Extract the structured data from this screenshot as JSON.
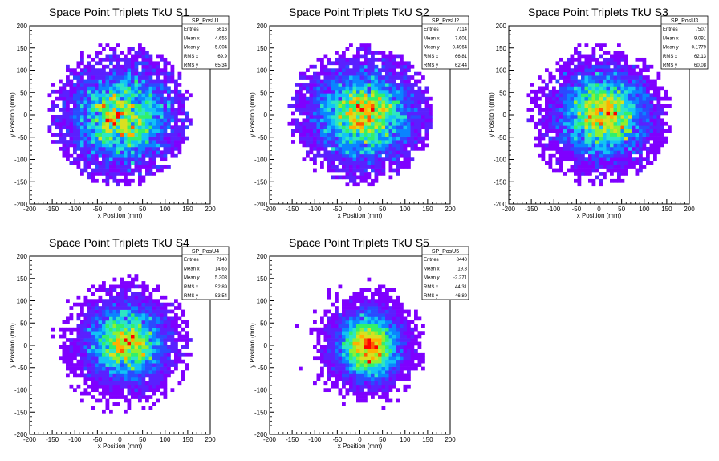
{
  "chart_data": [
    {
      "type": "heatmap",
      "title": "Space Point Triplets TkU S1",
      "xlabel": "x Position (mm)",
      "ylabel": "y Position (mm)",
      "xlim": [
        -200,
        200
      ],
      "ylim": [
        -200,
        200
      ],
      "x_ticks": [
        -200,
        -150,
        -100,
        -50,
        0,
        50,
        100,
        150,
        200
      ],
      "y_ticks": [
        -200,
        -150,
        -100,
        -50,
        0,
        50,
        100,
        150,
        200
      ],
      "bin_width_mm": 8,
      "stats": {
        "name": "SP_PosU1",
        "rows": [
          {
            "label": "Entries",
            "value": "5616"
          },
          {
            "label": "Mean x",
            "value": "4.655"
          },
          {
            "label": "Mean y",
            "value": "-5.004"
          },
          {
            "label": "RMS x",
            "value": "69.9"
          },
          {
            "label": "RMS y",
            "value": "65.34"
          }
        ]
      },
      "distribution": {
        "mean_x": 4.655,
        "mean_y": -5.004,
        "rms_x": 69.9,
        "rms_y": 65.34,
        "entries": 5616,
        "radius_mm": 160
      }
    },
    {
      "type": "heatmap",
      "title": "Space Point Triplets TkU S2",
      "xlabel": "x Position (mm)",
      "ylabel": "y Position (mm)",
      "xlim": [
        -200,
        200
      ],
      "ylim": [
        -200,
        200
      ],
      "x_ticks": [
        -200,
        -150,
        -100,
        -50,
        0,
        50,
        100,
        150,
        200
      ],
      "y_ticks": [
        -200,
        -150,
        -100,
        -50,
        0,
        50,
        100,
        150,
        200
      ],
      "bin_width_mm": 8,
      "stats": {
        "name": "SP_PosU2",
        "rows": [
          {
            "label": "Entries",
            "value": "7114"
          },
          {
            "label": "Mean x",
            "value": "7.601"
          },
          {
            "label": "Mean y",
            "value": "0.4964"
          },
          {
            "label": "RMS x",
            "value": "66.81"
          },
          {
            "label": "RMS y",
            "value": "62.44"
          }
        ]
      },
      "distribution": {
        "mean_x": 7.601,
        "mean_y": 0.4964,
        "rms_x": 66.81,
        "rms_y": 62.44,
        "entries": 7114,
        "radius_mm": 160
      }
    },
    {
      "type": "heatmap",
      "title": "Space Point Triplets TkU S3",
      "xlabel": "x Position (mm)",
      "ylabel": "y Position (mm)",
      "xlim": [
        -200,
        200
      ],
      "ylim": [
        -200,
        200
      ],
      "x_ticks": [
        -200,
        -150,
        -100,
        -50,
        0,
        50,
        100,
        150,
        200
      ],
      "y_ticks": [
        -200,
        -150,
        -100,
        -50,
        0,
        50,
        100,
        150,
        200
      ],
      "bin_width_mm": 8,
      "stats": {
        "name": "SP_PosU3",
        "rows": [
          {
            "label": "Entries",
            "value": "7507"
          },
          {
            "label": "Mean x",
            "value": "9.091"
          },
          {
            "label": "Mean y",
            "value": "0.1779"
          },
          {
            "label": "RMS x",
            "value": "62.13"
          },
          {
            "label": "RMS y",
            "value": "60.08"
          }
        ]
      },
      "distribution": {
        "mean_x": 9.091,
        "mean_y": 0.1779,
        "rms_x": 62.13,
        "rms_y": 60.08,
        "entries": 7507,
        "radius_mm": 160
      }
    },
    {
      "type": "heatmap",
      "title": "Space Point Triplets TkU S4",
      "xlabel": "x Position (mm)",
      "ylabel": "y Position (mm)",
      "xlim": [
        -200,
        200
      ],
      "ylim": [
        -200,
        200
      ],
      "x_ticks": [
        -200,
        -150,
        -100,
        -50,
        0,
        50,
        100,
        150,
        200
      ],
      "y_ticks": [
        -200,
        -150,
        -100,
        -50,
        0,
        50,
        100,
        150,
        200
      ],
      "bin_width_mm": 8,
      "stats": {
        "name": "SP_PosU4",
        "rows": [
          {
            "label": "Entries",
            "value": "7140"
          },
          {
            "label": "Mean x",
            "value": "14.65"
          },
          {
            "label": "Mean y",
            "value": "5.303"
          },
          {
            "label": "RMS x",
            "value": "52.89"
          },
          {
            "label": "RMS y",
            "value": "53.54"
          }
        ]
      },
      "distribution": {
        "mean_x": 14.65,
        "mean_y": 5.303,
        "rms_x": 52.89,
        "rms_y": 53.54,
        "entries": 7140,
        "radius_mm": 160
      }
    },
    {
      "type": "heatmap",
      "title": "Space Point Triplets TkU S5",
      "xlabel": "x Position (mm)",
      "ylabel": "y Position (mm)",
      "xlim": [
        -200,
        200
      ],
      "ylim": [
        -200,
        200
      ],
      "x_ticks": [
        -200,
        -150,
        -100,
        -50,
        0,
        50,
        100,
        150,
        200
      ],
      "y_ticks": [
        -200,
        -150,
        -100,
        -50,
        0,
        50,
        100,
        150,
        200
      ],
      "bin_width_mm": 8,
      "stats": {
        "name": "SP_PosU5",
        "rows": [
          {
            "label": "Entries",
            "value": "8440"
          },
          {
            "label": "Mean x",
            "value": "19.3"
          },
          {
            "label": "Mean y",
            "value": "-2.271"
          },
          {
            "label": "RMS x",
            "value": "44.31"
          },
          {
            "label": "RMS y",
            "value": "46.89"
          }
        ]
      },
      "distribution": {
        "mean_x": 19.3,
        "mean_y": -2.271,
        "rms_x": 44.31,
        "rms_y": 46.89,
        "entries": 8440,
        "radius_mm": 150
      }
    }
  ],
  "colors": {
    "background": "#ffffff",
    "frame": "#000000",
    "palette": [
      "#7f00ff",
      "#5a20ff",
      "#2a4bff",
      "#0a84ff",
      "#12c3f5",
      "#2de6c3",
      "#31f06a",
      "#8ff030",
      "#d8e020",
      "#ffb000",
      "#ff5a00",
      "#ff0000"
    ]
  }
}
